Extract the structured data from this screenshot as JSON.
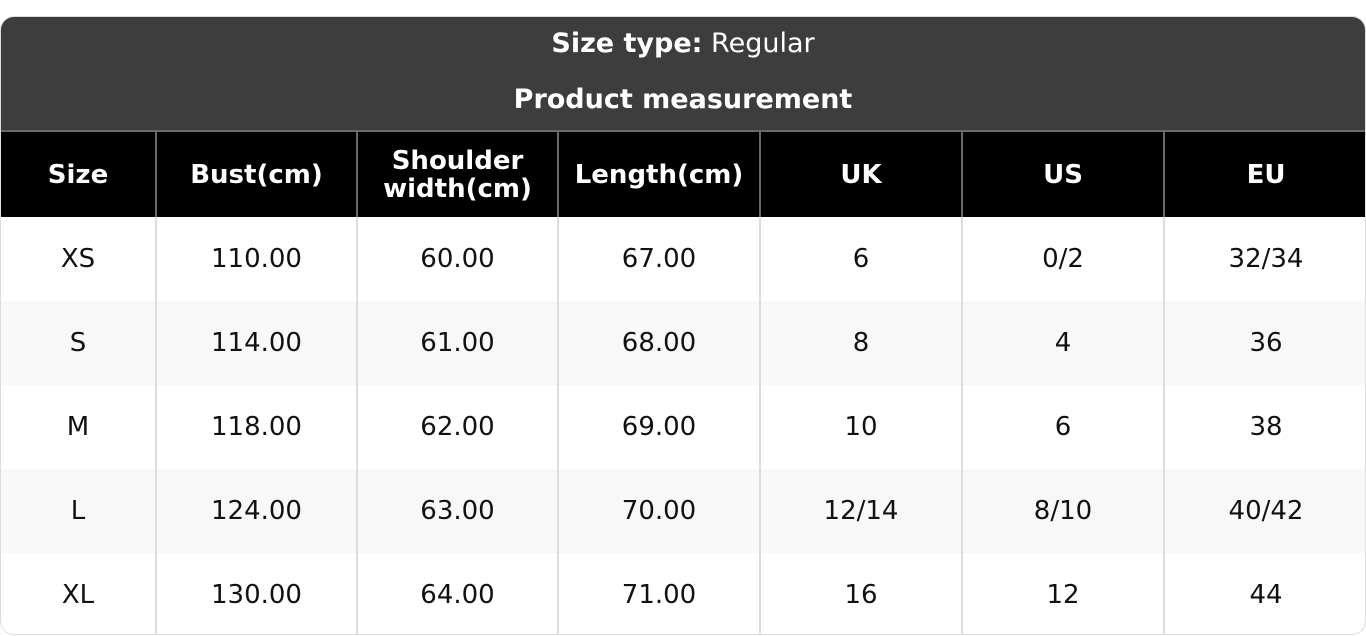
{
  "header": {
    "size_type_label": "Size type:",
    "size_type_value": "Regular",
    "subtitle": "Product measurement"
  },
  "columns": [
    "Size",
    "Bust(cm)",
    "Shoulder width(cm)",
    "Length(cm)",
    "UK",
    "US",
    "EU"
  ],
  "rows": [
    [
      "XS",
      "110.00",
      "60.00",
      "67.00",
      "6",
      "0/2",
      "32/34"
    ],
    [
      "S",
      "114.00",
      "61.00",
      "68.00",
      "8",
      "4",
      "36"
    ],
    [
      "M",
      "118.00",
      "62.00",
      "69.00",
      "10",
      "6",
      "38"
    ],
    [
      "L",
      "124.00",
      "63.00",
      "70.00",
      "12/14",
      "8/10",
      "40/42"
    ],
    [
      "XL",
      "130.00",
      "64.00",
      "71.00",
      "16",
      "12",
      "44"
    ]
  ],
  "colors": {
    "title_bar": "#3d3d3d",
    "header_row": "#000000",
    "alt_row": "#f8f8f8"
  }
}
